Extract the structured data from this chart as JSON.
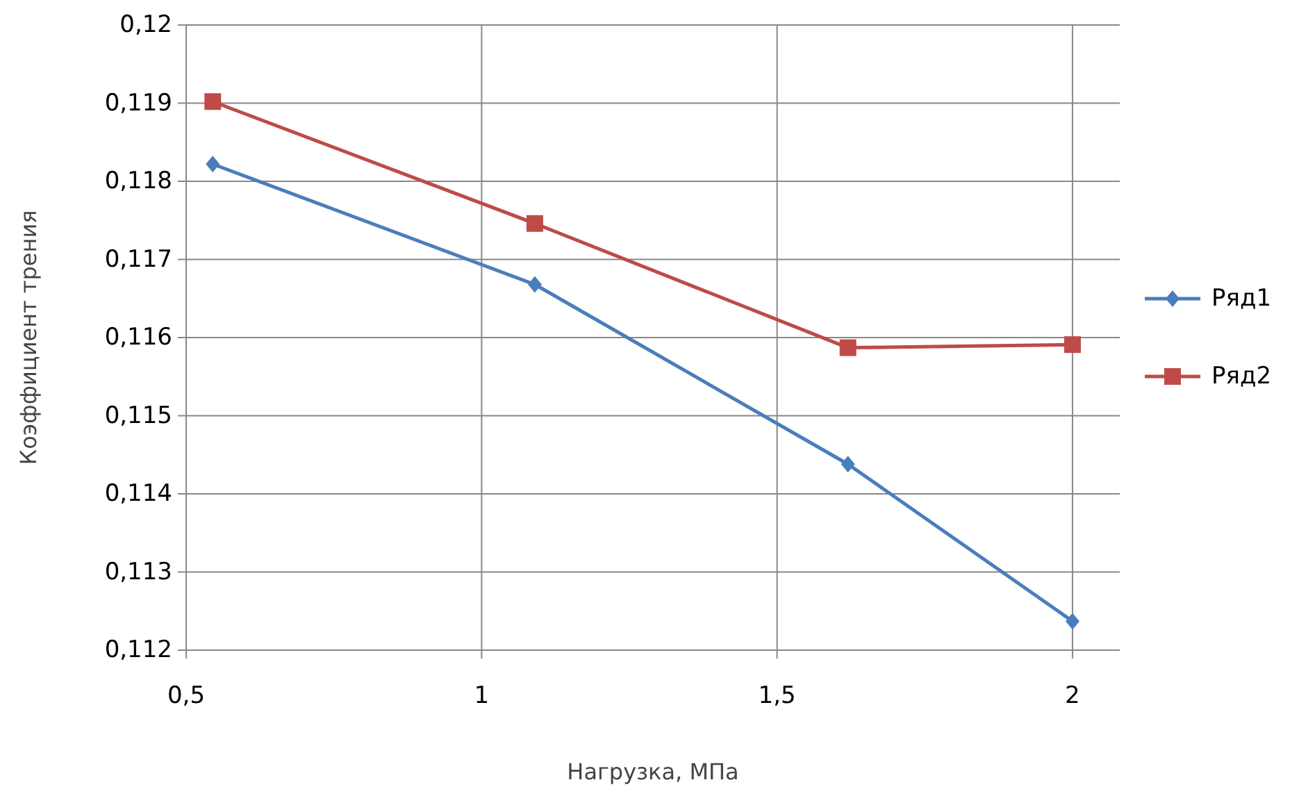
{
  "chart_data": {
    "type": "line",
    "xlabel": "Нагрузка, МПа",
    "ylabel": "Коэффициент трения",
    "x": [
      0.545,
      1.09,
      1.62,
      2.0
    ],
    "xlim": [
      0.5,
      2.08
    ],
    "xticks": [
      {
        "value": 0.5,
        "label": "0,5"
      },
      1,
      {
        "value": 1.5,
        "label": "1,5"
      },
      2
    ],
    "ylim": [
      0.112,
      0.12
    ],
    "yticks": [
      {
        "value": 0.112,
        "label": "0,112"
      },
      {
        "value": 0.113,
        "label": "0,113"
      },
      {
        "value": 0.114,
        "label": "0,114"
      },
      {
        "value": 0.115,
        "label": "0,115"
      },
      {
        "value": 0.116,
        "label": "0,116"
      },
      {
        "value": 0.117,
        "label": "0,117"
      },
      {
        "value": 0.118,
        "label": "0,118"
      },
      {
        "value": 0.119,
        "label": "0,119"
      },
      {
        "value": 0.12,
        "label": "0,12"
      }
    ],
    "grid": true,
    "legend": "right",
    "line_style": "solid",
    "series": [
      {
        "name": "Ряд1",
        "color": "#4a7ebb",
        "marker": "diamond",
        "values": [
          0.11822,
          0.11668,
          0.11438,
          0.11237
        ]
      },
      {
        "name": "Ряд2",
        "color": "#be4b48",
        "marker": "square",
        "values": [
          0.11902,
          0.11746,
          0.11587,
          0.11591
        ]
      }
    ]
  }
}
